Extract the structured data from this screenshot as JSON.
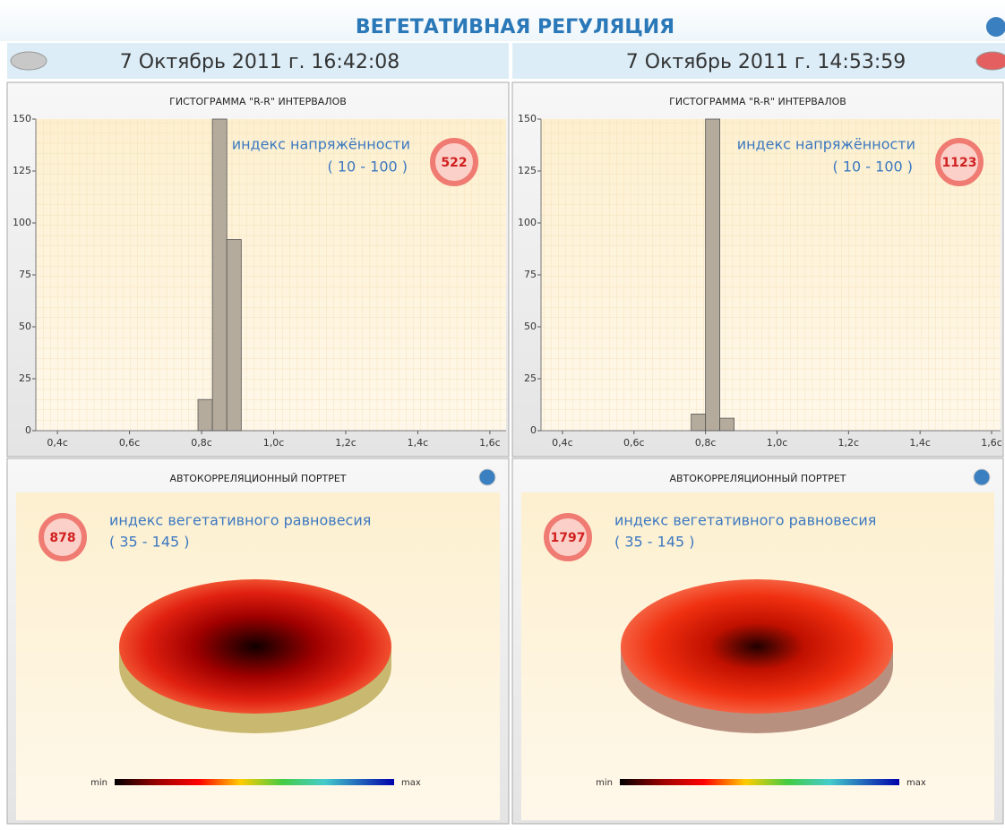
{
  "header": {
    "title": "ВЕГЕТАТИВНАЯ РЕГУЛЯЦИЯ",
    "dates": [
      "7 Октябрь 2011 г. 16:42:08",
      "7 Октябрь 2011 г. 14:53:59"
    ]
  },
  "chart_data": [
    {
      "type": "histogram",
      "title": "ГИСТОГРАММА \"R-R\" ИНТЕРВАЛОВ",
      "bins": [
        0.79,
        0.83,
        0.87,
        0.91
      ],
      "values": [
        15,
        150,
        92
      ],
      "color": "#b5ab9c",
      "xlim": [
        0.34,
        1.645
      ],
      "ylim": [
        0,
        150
      ],
      "xticks": [
        {
          "value": 0.4,
          "label": "0,4с"
        },
        {
          "value": 0.6,
          "label": "0,6с"
        },
        {
          "value": 0.8,
          "label": "0,8с"
        },
        {
          "value": 1.0,
          "label": "1,0с"
        },
        {
          "value": 1.2,
          "label": "1,2с"
        },
        {
          "value": 1.4,
          "label": "1,4с"
        },
        {
          "value": 1.6,
          "label": "1,6с"
        }
      ],
      "yticks": [
        0,
        25,
        50,
        75,
        100,
        125,
        150
      ],
      "index_label": "индекс напряжённости",
      "index_range": "( 10 - 100 )",
      "index_value": "522"
    },
    {
      "type": "histogram",
      "title": "ГИСТОГРАММА \"R-R\" ИНТЕРВАЛОВ",
      "bins": [
        0.76,
        0.8,
        0.84,
        0.88
      ],
      "values": [
        8,
        150,
        6
      ],
      "color": "#b5ab9c",
      "xlim": [
        0.34,
        1.625
      ],
      "ylim": [
        0,
        150
      ],
      "xticks": [
        {
          "value": 0.4,
          "label": "0,4с"
        },
        {
          "value": 0.6,
          "label": "0,6с"
        },
        {
          "value": 0.8,
          "label": "0,8с"
        },
        {
          "value": 1.0,
          "label": "1,0с"
        },
        {
          "value": 1.2,
          "label": "1,2с"
        },
        {
          "value": 1.4,
          "label": "1,4с"
        },
        {
          "value": 1.6,
          "label": "1,6с"
        }
      ],
      "yticks": [
        0,
        25,
        50,
        75,
        100,
        125,
        150
      ],
      "index_label": "индекс напряжённости",
      "index_range": "( 10 - 100 )",
      "index_value": "1123"
    }
  ],
  "portraits": [
    {
      "title": "АВТОКОРРЕЛЯЦИОННЫЙ ПОРТРЕТ",
      "label": "индекс вегетативного равновесия",
      "range": "( 35 - 145 )",
      "value": "878",
      "min": "min",
      "max": "max"
    },
    {
      "title": "АВТОКОРРЕЛЯЦИОННЫЙ ПОРТРЕТ",
      "label": "индекс вегетативного равновесия",
      "range": "( 35 - 145 )",
      "value": "1797",
      "min": "min",
      "max": "max"
    }
  ]
}
